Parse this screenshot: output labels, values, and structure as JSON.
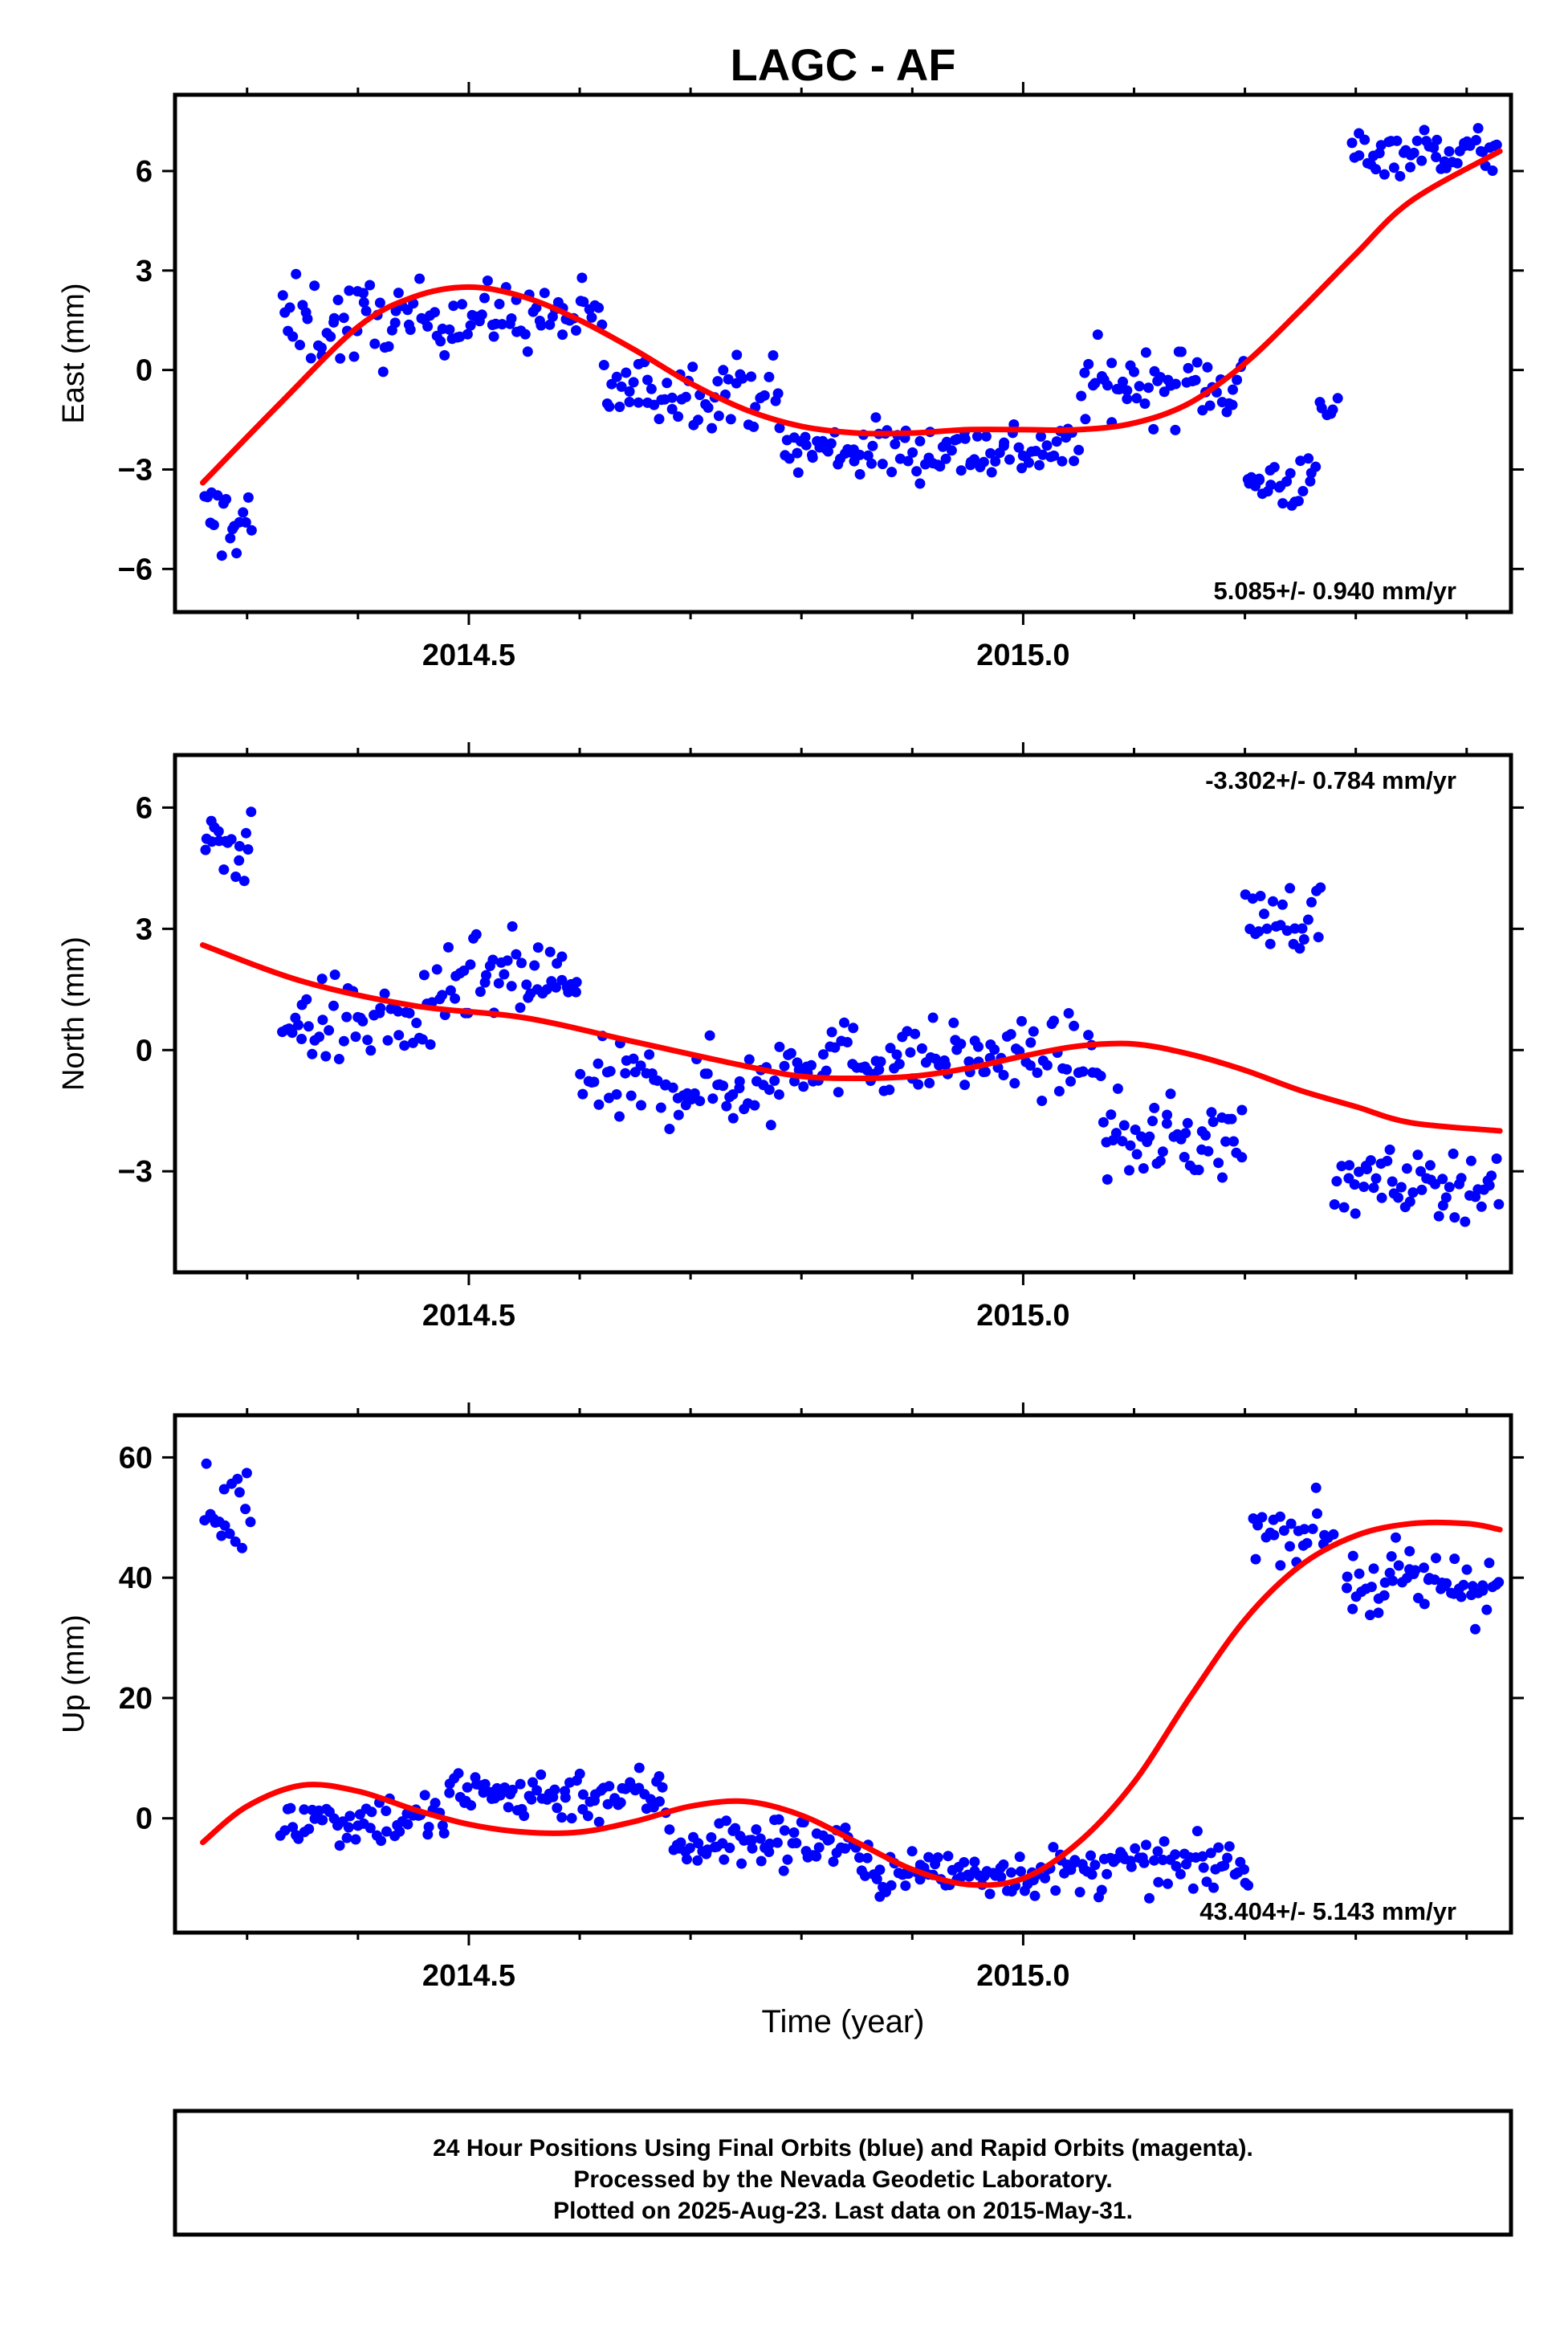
{
  "title": "LAGC - AF",
  "colors": {
    "points": "#0000ff",
    "fit": "#ff0000",
    "axes": "#000000"
  },
  "chart_data": [
    {
      "type": "scatter",
      "panel": "east",
      "ylabel": "East (mm)",
      "xlabel": "",
      "xlim": [
        2014.235,
        2015.44
      ],
      "ylim": [
        -7.3,
        8.3
      ],
      "yticks": [
        {
          "v": 6,
          "label": "6"
        },
        {
          "v": 3,
          "label": "3"
        },
        {
          "v": 0,
          "label": "0"
        },
        {
          "v": -3,
          "label": "−3"
        },
        {
          "v": -6,
          "label": "−6"
        }
      ],
      "xticks": [
        {
          "v": 2014.5,
          "label": "2014.5"
        },
        {
          "v": 2015.0,
          "label": "2015.0"
        }
      ],
      "minor_xticks": [
        2014.3,
        2014.4,
        2014.6,
        2014.7,
        2014.8,
        2014.9,
        2015.1,
        2015.2,
        2015.3,
        2015.4
      ],
      "rate_label": "5.085+/- 0.940 mm/yr",
      "rate_position": "bottom-right",
      "fit": {
        "name": "model fit",
        "x": [
          2014.26,
          2014.33,
          2014.4,
          2014.45,
          2014.5,
          2014.55,
          2014.6,
          2014.65,
          2014.7,
          2014.75,
          2014.8,
          2014.85,
          2014.9,
          2014.95,
          2015.0,
          2015.05,
          2015.1,
          2015.15,
          2015.2,
          2015.25,
          2015.3,
          2015.35,
          2015.43
        ],
        "y": [
          -3.4,
          -1.0,
          1.3,
          2.2,
          2.5,
          2.2,
          1.5,
          0.6,
          -0.4,
          -1.2,
          -1.7,
          -1.9,
          -1.9,
          -1.8,
          -1.8,
          -1.8,
          -1.6,
          -1.0,
          0.2,
          1.8,
          3.5,
          5.1,
          6.6
        ]
      },
      "clusters": [
        {
          "x0": 2014.26,
          "x1": 2014.305,
          "mean": -4.5,
          "spread": 1.3,
          "n": 18
        },
        {
          "x0": 2014.33,
          "x1": 2014.45,
          "mean": 1.4,
          "spread": 1.3,
          "n": 45
        },
        {
          "x0": 2014.45,
          "x1": 2014.62,
          "mean": 1.6,
          "spread": 1.0,
          "n": 62
        },
        {
          "x0": 2014.62,
          "x1": 2014.78,
          "mean": -0.6,
          "spread": 1.0,
          "n": 58
        },
        {
          "x0": 2014.78,
          "x1": 2015.05,
          "mean": -2.4,
          "spread": 0.9,
          "n": 100
        },
        {
          "x0": 2015.05,
          "x1": 2015.2,
          "mean": -0.4,
          "spread": 1.1,
          "n": 55
        },
        {
          "x0": 2015.2,
          "x1": 2015.265,
          "mean": -3.4,
          "spread": 0.8,
          "n": 25
        },
        {
          "x0": 2015.265,
          "x1": 2015.285,
          "mean": -1.2,
          "spread": 0.7,
          "n": 6
        },
        {
          "x0": 2015.295,
          "x1": 2015.43,
          "mean": 6.6,
          "spread": 0.7,
          "n": 50
        }
      ]
    },
    {
      "type": "scatter",
      "panel": "north",
      "ylabel": "North (mm)",
      "xlabel": "",
      "xlim": [
        2014.235,
        2015.44
      ],
      "ylim": [
        -5.5,
        7.3
      ],
      "yticks": [
        {
          "v": 6,
          "label": "6"
        },
        {
          "v": 3,
          "label": "3"
        },
        {
          "v": 0,
          "label": "0"
        },
        {
          "v": -3,
          "label": "−3"
        }
      ],
      "xticks": [
        {
          "v": 2014.5,
          "label": "2014.5"
        },
        {
          "v": 2015.0,
          "label": "2015.0"
        }
      ],
      "minor_xticks": [
        2014.3,
        2014.4,
        2014.6,
        2014.7,
        2014.8,
        2014.9,
        2015.1,
        2015.2,
        2015.3,
        2015.4
      ],
      "rate_label": "-3.302+/- 0.784 mm/yr",
      "rate_position": "top-right",
      "fit": {
        "name": "model fit",
        "x": [
          2014.26,
          2014.35,
          2014.45,
          2014.55,
          2014.65,
          2014.75,
          2014.8,
          2014.85,
          2014.9,
          2014.95,
          2015.0,
          2015.05,
          2015.1,
          2015.15,
          2015.2,
          2015.25,
          2015.3,
          2015.35,
          2015.43
        ],
        "y": [
          2.6,
          1.7,
          1.1,
          0.8,
          0.2,
          -0.4,
          -0.65,
          -0.7,
          -0.65,
          -0.45,
          -0.15,
          0.1,
          0.15,
          -0.1,
          -0.5,
          -1.0,
          -1.4,
          -1.8,
          -2.0
        ]
      },
      "clusters": [
        {
          "x0": 2014.26,
          "x1": 2014.305,
          "mean": 5.0,
          "spread": 0.8,
          "n": 18
        },
        {
          "x0": 2014.33,
          "x1": 2014.48,
          "mean": 0.7,
          "spread": 1.1,
          "n": 55
        },
        {
          "x0": 2014.48,
          "x1": 2014.6,
          "mean": 1.7,
          "spread": 1.1,
          "n": 45
        },
        {
          "x0": 2014.6,
          "x1": 2014.78,
          "mean": -0.9,
          "spread": 1.0,
          "n": 65
        },
        {
          "x0": 2014.78,
          "x1": 2015.07,
          "mean": -0.2,
          "spread": 0.9,
          "n": 105
        },
        {
          "x0": 2015.07,
          "x1": 2015.2,
          "mean": -2.2,
          "spread": 1.0,
          "n": 50
        },
        {
          "x0": 2015.2,
          "x1": 2015.27,
          "mean": 3.3,
          "spread": 0.8,
          "n": 25
        },
        {
          "x0": 2015.28,
          "x1": 2015.43,
          "mean": -3.3,
          "spread": 0.8,
          "n": 55
        }
      ]
    },
    {
      "type": "scatter",
      "panel": "up",
      "ylabel": "Up (mm)",
      "xlabel": "Time (year)",
      "xlim": [
        2014.235,
        2015.44
      ],
      "ylim": [
        -19,
        67
      ],
      "yticks": [
        {
          "v": 60,
          "label": "60"
        },
        {
          "v": 40,
          "label": "40"
        },
        {
          "v": 20,
          "label": "20"
        },
        {
          "v": 0,
          "label": "0"
        }
      ],
      "xticks": [
        {
          "v": 2014.5,
          "label": "2014.5"
        },
        {
          "v": 2015.0,
          "label": "2015.0"
        }
      ],
      "minor_xticks": [
        2014.3,
        2014.4,
        2014.6,
        2014.7,
        2014.8,
        2014.9,
        2015.1,
        2015.2,
        2015.3,
        2015.4
      ],
      "rate_label": "43.404+/- 5.143 mm/yr",
      "rate_position": "bottom-right",
      "fit": {
        "name": "model fit",
        "x": [
          2014.26,
          2014.3,
          2014.35,
          2014.4,
          2014.45,
          2014.5,
          2014.55,
          2014.6,
          2014.65,
          2014.7,
          2014.75,
          2014.8,
          2014.85,
          2014.9,
          2014.95,
          2015.0,
          2015.05,
          2015.1,
          2015.15,
          2015.2,
          2015.25,
          2015.3,
          2015.35,
          2015.4,
          2015.43
        ],
        "y": [
          -4,
          2,
          5.5,
          4.5,
          1.5,
          -1,
          -2.3,
          -2.3,
          -0.5,
          2,
          2.8,
          0.5,
          -4,
          -8.5,
          -11,
          -10,
          -4,
          6,
          20,
          33,
          42,
          47,
          49,
          49,
          48
        ]
      },
      "clusters": [
        {
          "x0": 2014.26,
          "x1": 2014.305,
          "mean": 51,
          "spread": 7,
          "n": 18
        },
        {
          "x0": 2014.33,
          "x1": 2014.48,
          "mean": 0,
          "spread": 4.5,
          "n": 55
        },
        {
          "x0": 2014.48,
          "x1": 2014.68,
          "mean": 4,
          "spread": 4.5,
          "n": 75
        },
        {
          "x0": 2014.68,
          "x1": 2014.85,
          "mean": -4,
          "spread": 4.5,
          "n": 65
        },
        {
          "x0": 2014.85,
          "x1": 2015.07,
          "mean": -9,
          "spread": 4,
          "n": 85
        },
        {
          "x0": 2015.07,
          "x1": 2015.205,
          "mean": -8,
          "spread": 4,
          "n": 50
        },
        {
          "x0": 2015.205,
          "x1": 2015.28,
          "mean": 48,
          "spread": 5,
          "n": 25
        },
        {
          "x0": 2015.29,
          "x1": 2015.43,
          "mean": 39,
          "spread": 6,
          "n": 55
        }
      ]
    }
  ],
  "caption": {
    "line1": "24 Hour Positions Using Final Orbits (blue) and Rapid Orbits (magenta).",
    "line2": "Processed by the Nevada Geodetic Laboratory.",
    "line3": "Plotted on 2025-Aug-23. Last data on 2015-May-31."
  }
}
